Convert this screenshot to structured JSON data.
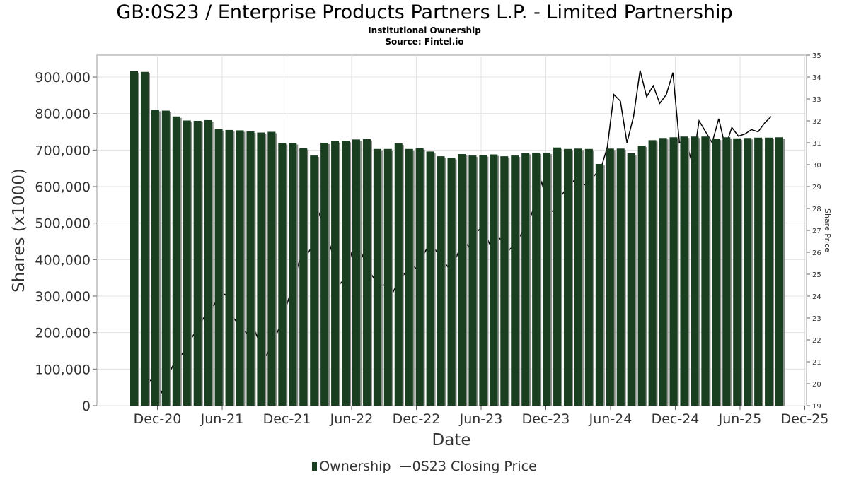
{
  "chart_data": {
    "type": "bar",
    "title": "GB:0S23 / Enterprise Products Partners L.P. - Limited Partnership",
    "subtitle": "Institutional Ownership",
    "source": "Source: Fintel.io",
    "xlabel": "Date",
    "ylabel": "Shares (x1000)",
    "y2label": "Share Price",
    "ylim": [
      0,
      960000
    ],
    "y2lim": [
      19,
      35
    ],
    "y_ticks": [
      0,
      100000,
      200000,
      300000,
      400000,
      500000,
      600000,
      700000,
      800000,
      900000
    ],
    "y_tick_labels": [
      "0",
      "100,000",
      "200,000",
      "300,000",
      "400,000",
      "500,000",
      "600,000",
      "700,000",
      "800,000",
      "900,000"
    ],
    "y2_ticks": [
      19,
      20,
      21,
      22,
      23,
      24,
      25,
      26,
      27,
      28,
      29,
      30,
      31,
      32,
      33,
      34,
      35
    ],
    "y2_tick_labels": [
      "19",
      "20",
      "21",
      "22",
      "23",
      "24",
      "25",
      "26",
      "27",
      "28",
      "29",
      "30",
      "31",
      "32",
      "33",
      "34",
      "35"
    ],
    "x_tick_labels": [
      "Dec-20",
      "Jun-21",
      "Dec-21",
      "Jun-22",
      "Dec-22",
      "Jun-23",
      "Dec-23",
      "Jun-24",
      "Dec-24",
      "Jun-25",
      "Dec-25"
    ],
    "grid": true,
    "legend": "bottom",
    "series": [
      {
        "name": "Ownership",
        "type": "bar",
        "color": "#1a3f20",
        "values": [
          916000,
          914000,
          810000,
          808000,
          792000,
          781000,
          780000,
          782000,
          757000,
          755000,
          754000,
          751000,
          748000,
          750000,
          719000,
          719000,
          705000,
          685000,
          720000,
          724000,
          725000,
          729000,
          730000,
          703000,
          703000,
          718000,
          703000,
          705000,
          696000,
          683000,
          678000,
          689000,
          685000,
          686000,
          688000,
          683000,
          685000,
          692000,
          693000,
          693000,
          707000,
          703000,
          704000,
          703000,
          662000,
          704000,
          704000,
          691000,
          712000,
          727000,
          733000,
          735000,
          737000,
          737000,
          737000,
          731000,
          735000,
          732000,
          733000,
          734000,
          734000,
          735000
        ]
      },
      {
        "name": "0S23 Closing Price",
        "type": "line",
        "color": "#000000",
        "values": [
          20.2,
          20.0,
          19.6,
          20.4,
          21.0,
          21.3,
          21.8,
          22.3,
          22.8,
          23.3,
          23.6,
          24.2,
          24.0,
          23.0,
          22.6,
          22.3,
          22.6,
          21.8,
          21.3,
          21.9,
          22.6,
          23.5,
          24.5,
          25.6,
          25.8,
          26.3,
          27.8,
          27.0,
          26.0,
          24.5,
          24.8,
          26.0,
          26.3,
          25.6,
          25.0,
          24.5,
          24.5,
          24.0,
          24.6,
          25.0,
          25.5,
          25.2,
          25.9,
          26.5,
          26.0,
          25.6,
          25.2,
          25.8,
          26.6,
          26.2,
          26.9,
          27.2,
          26.4,
          26.8,
          26.5,
          26.1,
          26.4,
          26.9,
          27.4,
          28.2,
          29.2,
          28.0,
          27.8,
          28.6,
          29.0,
          29.3,
          29.2,
          29.0,
          29.5,
          29.8,
          30.8,
          33.2,
          32.9,
          31.0,
          32.2,
          34.3,
          33.1,
          33.6,
          32.8,
          33.2,
          34.2,
          31.0,
          31.1,
          30.0,
          32.0,
          31.5,
          31.0,
          32.1,
          30.8,
          31.7,
          31.3,
          31.4,
          31.6,
          31.5,
          31.9,
          32.2
        ]
      }
    ]
  },
  "legend": {
    "items": [
      {
        "label": "Ownership"
      },
      {
        "label": "0S23 Closing Price"
      }
    ]
  }
}
